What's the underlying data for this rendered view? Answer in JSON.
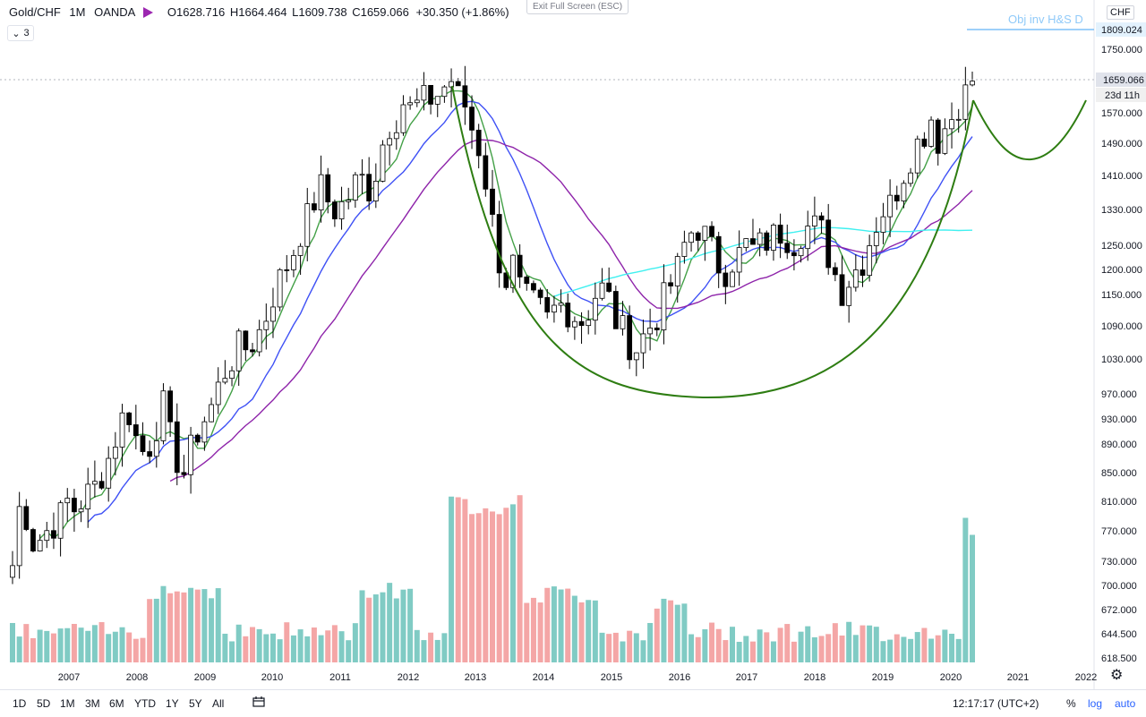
{
  "header": {
    "symbol": "Gold/CHF",
    "interval": "1M",
    "broker": "OANDA",
    "open_label": "O",
    "open": "1628.716",
    "high_label": "H",
    "high": "1664.464",
    "low_label": "L",
    "low": "1609.738",
    "close_label": "C",
    "close": "1659.066",
    "change": "+30.350 (+1.86%)",
    "indicator_count": "3"
  },
  "exit_fullscreen": "Exit Full Screen (ESC)",
  "currency": "CHF",
  "objective_label": "Obj inv H&S D",
  "price_tags": {
    "objective": "1809.024",
    "last": "1659.066",
    "countdown": "23d 11h"
  },
  "colors": {
    "up": "#ffffff",
    "down": "#000000",
    "wick": "#000000",
    "ma_green": "#43a047",
    "ma_blue": "#3f51f5",
    "ma_purple": "#8e24aa",
    "ma_cyan": "#40f0f0",
    "vol_up": "#80cbc4",
    "vol_down": "#f4a6a6",
    "arc": "#2e7d12",
    "obj_line": "#64b5f6"
  },
  "bottom": {
    "timeframes": [
      "1D",
      "5D",
      "1M",
      "3M",
      "6M",
      "YTD",
      "1Y",
      "5Y",
      "All"
    ],
    "clock": "12:17:17 (UTC+2)",
    "percent": "%",
    "log": "log",
    "auto": "auto"
  },
  "chart_data": {
    "type": "candlestick",
    "title": "Gold/CHF · 1M · OANDA",
    "ylim": [
      618.5,
      1890
    ],
    "ytick_labels": [
      "618.500",
      "644.500",
      "672.000",
      "700.000",
      "730.000",
      "770.000",
      "810.000",
      "850.000",
      "890.000",
      "930.000",
      "970.000",
      "1030.000",
      "1090.000",
      "1150.000",
      "1200.000",
      "1250.000",
      "1330.000",
      "1410.000",
      "1490.000",
      "1570.000",
      "1659.066",
      "1750.000",
      "1809.024"
    ],
    "xtick_labels": [
      "2007",
      "2008",
      "2009",
      "2010",
      "2011",
      "2012",
      "2013",
      "2014",
      "2015",
      "2016",
      "2017",
      "2018",
      "2019",
      "2020",
      "2021",
      "2022"
    ],
    "candles_close": [
      725,
      800,
      790,
      755,
      760,
      770,
      780,
      790,
      810,
      800,
      810,
      820,
      830,
      850,
      870,
      900,
      930,
      940,
      900,
      880,
      890,
      920,
      950,
      900,
      870,
      850,
      880,
      910,
      930,
      950,
      980,
      1010,
      1030,
      1050,
      1050,
      1060,
      1080,
      1110,
      1150,
      1180,
      1210,
      1240,
      1280,
      1310,
      1350,
      1380,
      1350,
      1330,
      1340,
      1360,
      1390,
      1400,
      1380,
      1420,
      1490,
      1540,
      1560,
      1600,
      1580,
      1590,
      1600,
      1610,
      1620,
      1640,
      1660,
      1610,
      1590,
      1530,
      1480,
      1400,
      1300,
      1220,
      1180,
      1210,
      1160,
      1140,
      1130,
      1120,
      1100,
      1120,
      1130,
      1120,
      1110,
      1100,
      1120,
      1150,
      1160,
      1140,
      1100,
      1080,
      1060,
      1050,
      1070,
      1090,
      1110,
      1140,
      1170,
      1200,
      1250,
      1280,
      1290,
      1270,
      1240,
      1210,
      1200,
      1220,
      1230,
      1250,
      1240,
      1250,
      1260,
      1270,
      1280,
      1270,
      1260,
      1280,
      1290,
      1290,
      1280,
      1230,
      1190,
      1160,
      1180,
      1200,
      1220,
      1260,
      1300,
      1330,
      1340,
      1380,
      1420,
      1460,
      1490,
      1520,
      1560,
      1500,
      1530,
      1560,
      1600,
      1620,
      1660
    ],
    "series": [
      {
        "name": "MA short",
        "color": "#43a047"
      },
      {
        "name": "MA medium",
        "color": "#3f51f5"
      },
      {
        "name": "MA long",
        "color": "#8e24aa"
      },
      {
        "name": "MA extra-long",
        "color": "#40f0f0"
      }
    ],
    "volume": "relative monthly volume bars, teal = up month, red = down month"
  }
}
